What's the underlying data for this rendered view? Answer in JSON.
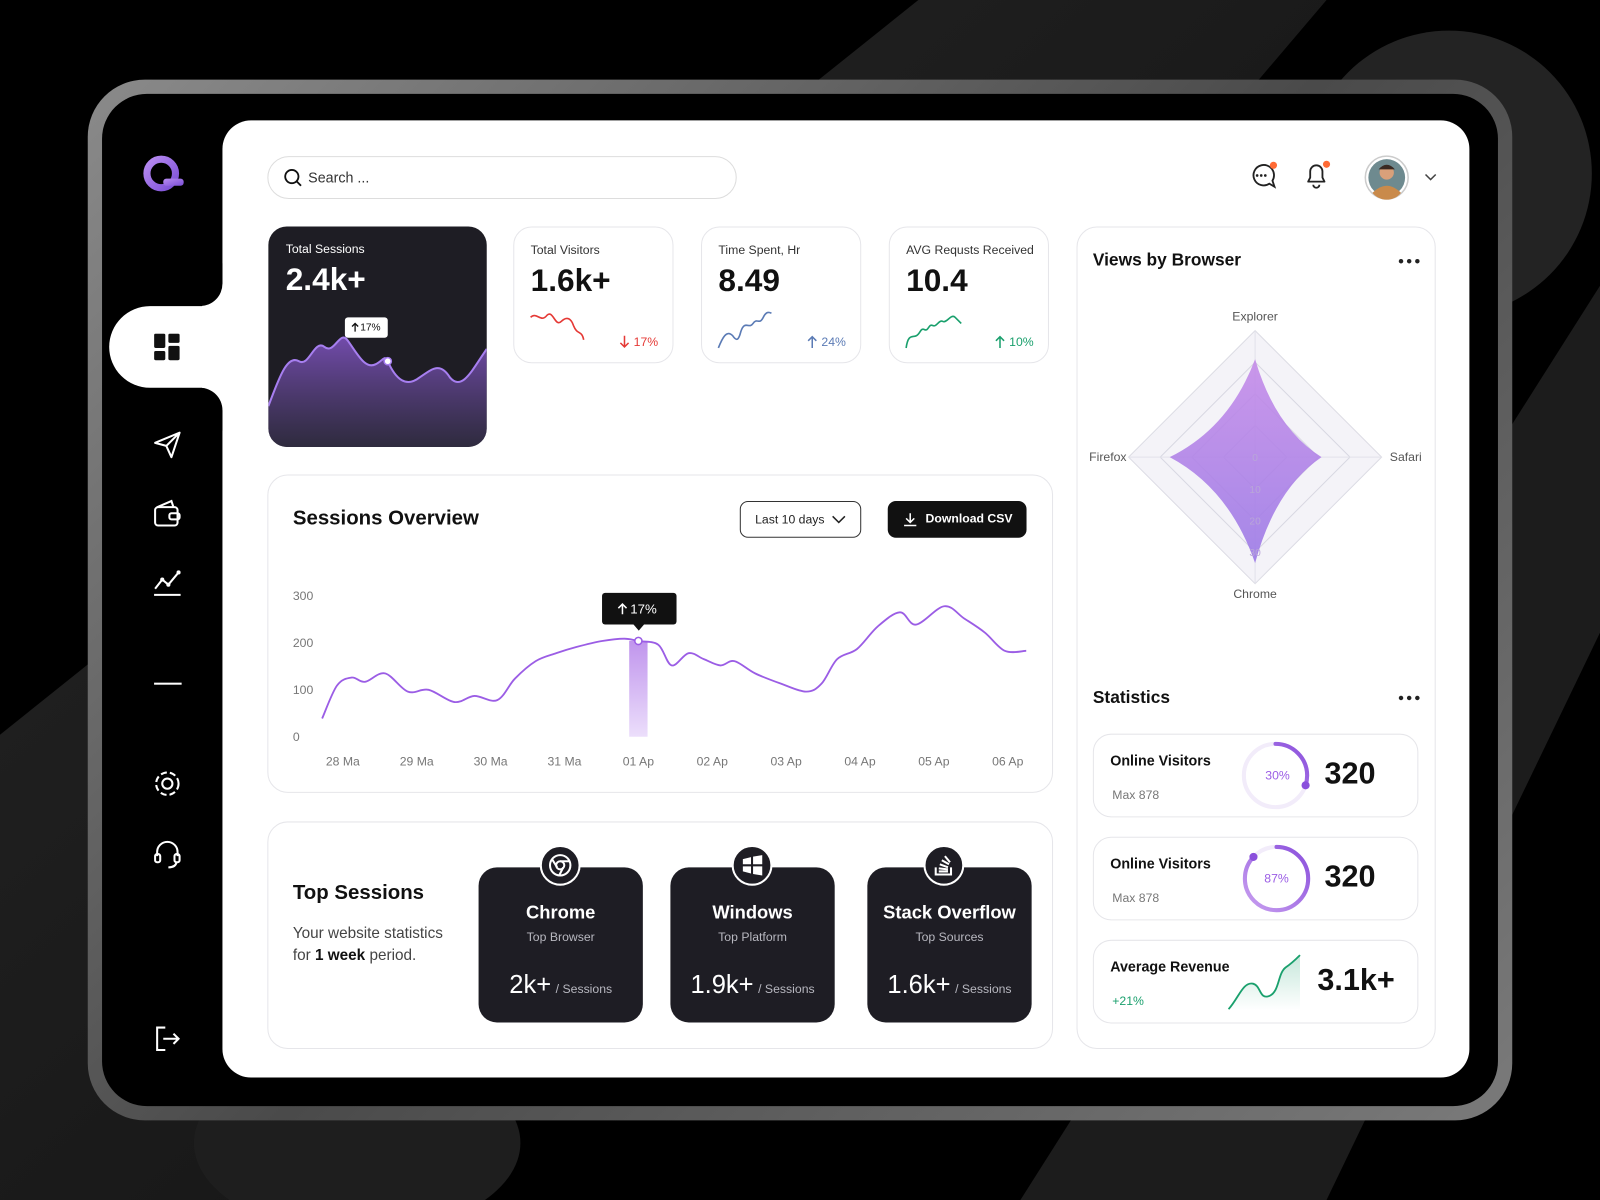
{
  "search_placeholder": "Search ...",
  "kpis": [
    {
      "label": "Total Sessions",
      "value": "2.4k+",
      "badge": "17%"
    },
    {
      "label": "Total Visitors",
      "value": "1.6k+",
      "change": "17%"
    },
    {
      "label": "Time Spent, Hr",
      "value": "8.49",
      "change": "24%"
    },
    {
      "label": "AVG Requsts Received",
      "value": "10.4",
      "change": "10%"
    }
  ],
  "sessions_overview": {
    "title": "Sessions Overview",
    "filter": "Last 10 days",
    "download": "Download CSV",
    "badge": "17%",
    "type": "line",
    "color": "#9b5de5",
    "x": [
      -0.28,
      -0.08,
      0.12,
      0.3,
      0.57,
      0.88,
      1.16,
      1.51,
      1.78,
      2.09,
      2.33,
      2.61,
      2.89,
      3.16,
      3.51,
      3.81,
      4,
      4.27,
      4.45,
      4.68,
      4.89,
      5.11,
      5.3,
      5.58,
      5.93,
      6.27,
      6.48,
      6.69,
      6.96,
      7.24,
      7.54,
      7.76,
      8.14,
      8.41,
      8.69,
      8.96,
      9.25
    ],
    "values": [
      39,
      109,
      126,
      117,
      135,
      96,
      100,
      74,
      87,
      78,
      124,
      161,
      178,
      191,
      204,
      209,
      204,
      196,
      152,
      178,
      165,
      152,
      161,
      135,
      113,
      96,
      113,
      165,
      187,
      235,
      265,
      239,
      278,
      252,
      222,
      183,
      183
    ],
    "highlight_x": 4,
    "xlim": [
      -0.3,
      9.3
    ],
    "xticks": [
      {
        "value": 0,
        "label": "28 Ma"
      },
      {
        "value": 1,
        "label": "29 Ma"
      },
      {
        "value": 2,
        "label": "30 Ma"
      },
      {
        "value": 3,
        "label": "31 Ma"
      },
      {
        "value": 4,
        "label": "01 Ap"
      },
      {
        "value": 5,
        "label": "02 Ap"
      },
      {
        "value": 6,
        "label": "03 Ap"
      },
      {
        "value": 7,
        "label": "04 Ap"
      },
      {
        "value": 8,
        "label": "05 Ap"
      },
      {
        "value": 9,
        "label": "06 Ap"
      }
    ],
    "ylim": [
      0,
      300
    ],
    "yticks": [
      0,
      100,
      200,
      300
    ]
  },
  "top_sessions": {
    "title": "Top Sessions",
    "desc_prefix": "Your website statistics for",
    "desc_bold": "1 week",
    "desc_suffix": "period.",
    "cards": [
      {
        "name": "Chrome",
        "sub": "Top Browser",
        "value": "2k+",
        "unit": "/ Sessions"
      },
      {
        "name": "Windows",
        "sub": "Top Platform",
        "value": "1.9k+",
        "unit": "/ Sessions"
      },
      {
        "name": "Stack Overflow",
        "sub": "Top Sources",
        "value": "1.6k+",
        "unit": "/ Sessions"
      }
    ]
  },
  "views_by_browser": {
    "title": "Views by Browser",
    "type": "radar",
    "axes": [
      "Explorer",
      "Safari",
      "Chrome",
      "Firefox"
    ],
    "values": [
      31,
      21,
      33.5,
      27
    ],
    "rlim": [
      0,
      40
    ],
    "rticks": [
      0,
      10,
      20,
      30
    ]
  },
  "statistics": {
    "title": "Statistics",
    "items": [
      {
        "label": "Online Visitors",
        "max": "Max 878",
        "percent": 30,
        "percent_label": "30%",
        "value": "320"
      },
      {
        "label": "Online Visitors",
        "max": "Max 878",
        "percent": 87,
        "percent_label": "87%",
        "value": "320"
      },
      {
        "label": "Average Revenue",
        "change": "+21%",
        "value": "3.1k+"
      }
    ]
  }
}
